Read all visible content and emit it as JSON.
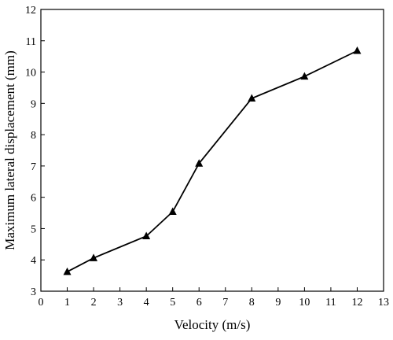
{
  "chart_data": {
    "type": "line",
    "title": "",
    "xlabel": "Velocity (m/s)",
    "ylabel": "Maximum lateral displacement (mm)",
    "xlim": [
      0,
      13
    ],
    "ylim": [
      3,
      12
    ],
    "xticks": [
      "0",
      "1",
      "2",
      "3",
      "4",
      "5",
      "6",
      "7",
      "8",
      "9",
      "10",
      "11",
      "12",
      "13"
    ],
    "yticks": [
      "3",
      "4",
      "5",
      "6",
      "7",
      "8",
      "9",
      "10",
      "11",
      "12"
    ],
    "grid": false,
    "marker": "triangle",
    "series": [
      {
        "x": [
          1,
          2,
          4,
          5,
          6,
          8,
          10,
          12
        ],
        "y": [
          3.62,
          4.06,
          4.76,
          5.54,
          7.08,
          9.16,
          9.86,
          10.68
        ]
      }
    ]
  }
}
